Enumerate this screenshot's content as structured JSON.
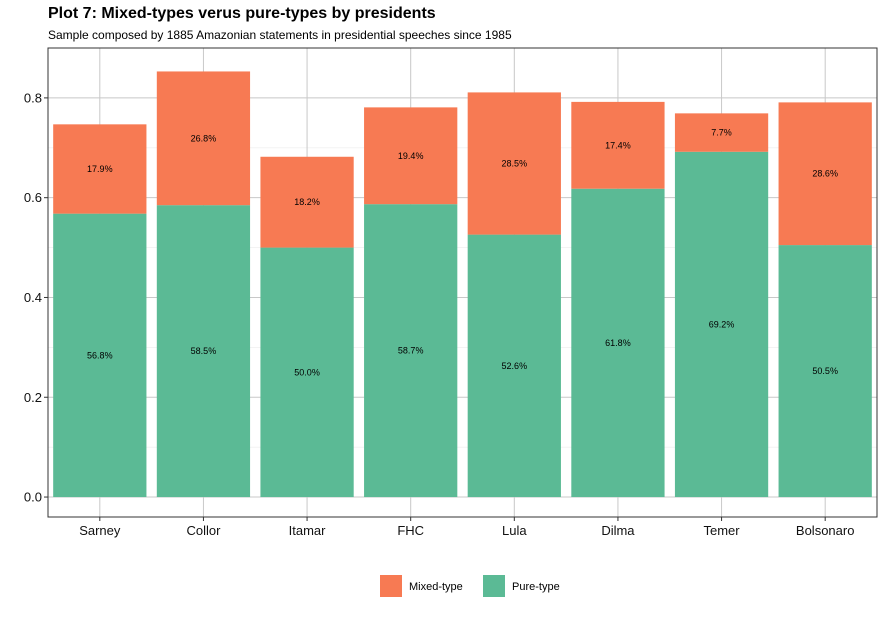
{
  "title": "Plot 7: Mixed-types verus pure-types by presidents",
  "subtitle": "Sample composed by 1885 Amazonian statements in presidential speeches since 1985",
  "chart_data": {
    "type": "bar",
    "stacked": true,
    "categories": [
      "Sarney",
      "Collor",
      "Itamar",
      "FHC",
      "Lula",
      "Dilma",
      "Temer",
      "Bolsonaro"
    ],
    "series": [
      {
        "name": "Pure-type",
        "color": "#5BBA95",
        "values": [
          0.568,
          0.585,
          0.5,
          0.587,
          0.526,
          0.618,
          0.692,
          0.505
        ],
        "labels": [
          "56.8%",
          "58.5%",
          "50.0%",
          "58.7%",
          "52.6%",
          "61.8%",
          "69.2%",
          "50.5%"
        ]
      },
      {
        "name": "Mixed-type",
        "color": "#F77A53",
        "values": [
          0.179,
          0.268,
          0.182,
          0.194,
          0.285,
          0.174,
          0.077,
          0.286
        ],
        "labels": [
          "17.9%",
          "26.8%",
          "18.2%",
          "19.4%",
          "28.5%",
          "17.4%",
          "7.7%",
          "28.6%"
        ]
      }
    ],
    "ylim": [
      -0.04,
      0.9
    ],
    "yticks": [
      "0.0",
      "0.2",
      "0.4",
      "0.6",
      "0.8"
    ],
    "xlabel": "",
    "ylabel": "",
    "grid": true,
    "legend_position": "bottom",
    "legend_order": [
      "Mixed-type",
      "Pure-type"
    ]
  }
}
